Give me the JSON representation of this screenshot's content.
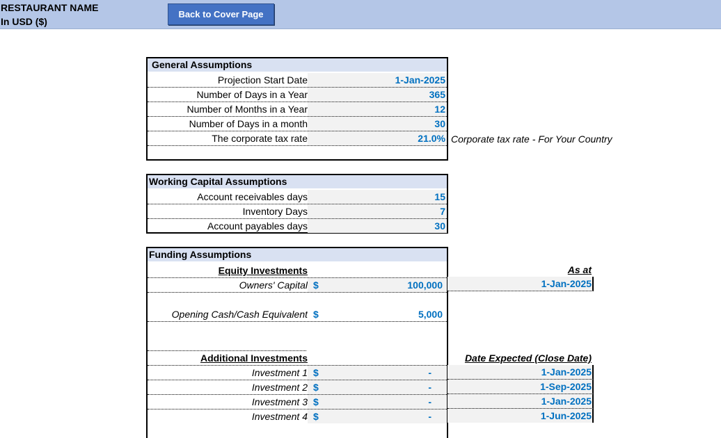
{
  "header": {
    "company": "RESTAURANT NAME",
    "currency": "In USD ($)",
    "back_button": "Back to Cover Page"
  },
  "general": {
    "title": "General Assumptions",
    "rows": [
      {
        "label": "Projection Start Date",
        "value": "1-Jan-2025"
      },
      {
        "label": "Number of Days in a Year",
        "value": "365"
      },
      {
        "label": "Number of Months in a Year",
        "value": "12"
      },
      {
        "label": "Number of Days in a month",
        "value": "30"
      },
      {
        "label": "The corporate tax rate",
        "value": "21.0%"
      }
    ],
    "note": "Corporate tax rate - For Your Country"
  },
  "working_capital": {
    "title": "Working Capital Assumptions",
    "rows": [
      {
        "label": "Account receivables days",
        "value": "15"
      },
      {
        "label": "Inventory Days",
        "value": "7"
      },
      {
        "label": "Account payables days",
        "value": "30"
      }
    ]
  },
  "funding": {
    "title": "Funding Assumptions",
    "equity_heading": "Equity Investments",
    "as_at_heading": "As at",
    "owners_capital": {
      "label": "Owners' Capital",
      "currency": "$",
      "value": "100,000",
      "date": "1-Jan-2025"
    },
    "opening_cash": {
      "label": "Opening Cash/Cash Equivalent",
      "currency": "$",
      "value": "5,000"
    },
    "additional_heading": "Additional Investments",
    "date_expected_heading": "Date Expected (Close Date)",
    "investments": [
      {
        "label": "Investment 1",
        "currency": "$",
        "value": "-",
        "date": "1-Jan-2025"
      },
      {
        "label": "Investment 2",
        "currency": "$",
        "value": "-",
        "date": "1-Sep-2025"
      },
      {
        "label": "Investment 3",
        "currency": "$",
        "value": "-",
        "date": "1-Jan-2025"
      },
      {
        "label": "Investment 4",
        "currency": "$",
        "value": "-",
        "date": "1-Jun-2025"
      }
    ]
  }
}
